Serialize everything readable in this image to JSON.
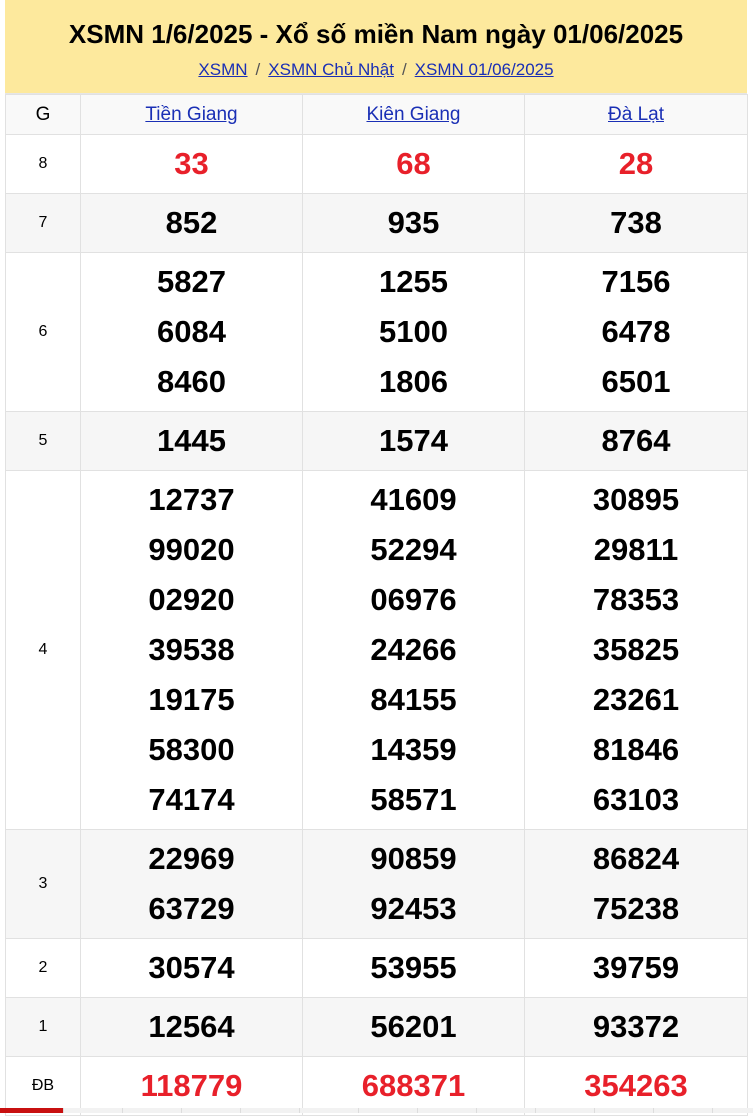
{
  "header": {
    "title": "XSMN 1/6/2025 - Xổ số miền Nam ngày 01/06/2025",
    "breadcrumb": [
      "XSMN",
      "XSMN Chủ Nhật",
      "XSMN 01/06/2025"
    ]
  },
  "table": {
    "prize_header": "G",
    "provinces": [
      "Tiền Giang",
      "Kiên Giang",
      "Đà Lạt"
    ],
    "rows": [
      {
        "prize": "8",
        "red": true,
        "values": [
          [
            "33"
          ],
          [
            "68"
          ],
          [
            "28"
          ]
        ]
      },
      {
        "prize": "7",
        "values": [
          [
            "852"
          ],
          [
            "935"
          ],
          [
            "738"
          ]
        ]
      },
      {
        "prize": "6",
        "values": [
          [
            "5827",
            "6084",
            "8460"
          ],
          [
            "1255",
            "5100",
            "1806"
          ],
          [
            "7156",
            "6478",
            "6501"
          ]
        ]
      },
      {
        "prize": "5",
        "values": [
          [
            "1445"
          ],
          [
            "1574"
          ],
          [
            "8764"
          ]
        ]
      },
      {
        "prize": "4",
        "values": [
          [
            "12737",
            "99020",
            "02920",
            "39538",
            "19175",
            "58300",
            "74174"
          ],
          [
            "41609",
            "52294",
            "06976",
            "24266",
            "84155",
            "14359",
            "58571"
          ],
          [
            "30895",
            "29811",
            "78353",
            "35825",
            "23261",
            "81846",
            "63103"
          ]
        ]
      },
      {
        "prize": "3",
        "values": [
          [
            "22969",
            "63729"
          ],
          [
            "90859",
            "92453"
          ],
          [
            "86824",
            "75238"
          ]
        ]
      },
      {
        "prize": "2",
        "values": [
          [
            "30574"
          ],
          [
            "53955"
          ],
          [
            "39759"
          ]
        ]
      },
      {
        "prize": "1",
        "values": [
          [
            "12564"
          ],
          [
            "56201"
          ],
          [
            "93372"
          ]
        ]
      },
      {
        "prize": "ĐB",
        "red": true,
        "values": [
          [
            "118779"
          ],
          [
            "688371"
          ],
          [
            "354263"
          ]
        ]
      }
    ]
  },
  "colors": {
    "header_bg": "#fde99d",
    "link": "#1a2fb5",
    "highlight": "#e8202a"
  }
}
